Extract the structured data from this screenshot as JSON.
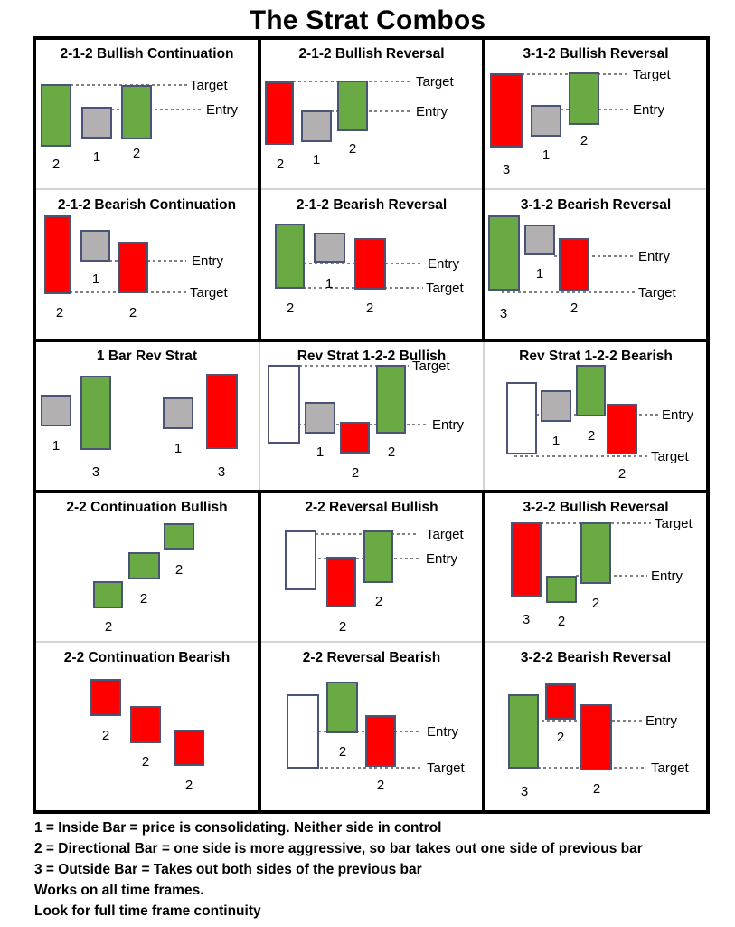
{
  "title": "The Strat Combos",
  "colors": {
    "bullish": "#6aaa45",
    "bearish": "#ff0000",
    "inside": "#b2b0b1",
    "outline_bar": "#ffffff",
    "bar_border": "#4a5478",
    "frame": "#000000"
  },
  "labels": {
    "target": "Target",
    "entry": "Entry"
  },
  "panels": [
    {
      "title": "2-1-2 Bullish Continuation",
      "bars": [
        {
          "kind": "bullish",
          "label": "2"
        },
        {
          "kind": "inside",
          "label": "1"
        },
        {
          "kind": "bullish",
          "label": "2"
        }
      ],
      "lines": [
        "target",
        "entry"
      ]
    },
    {
      "title": "2-1-2 Bullish Reversal",
      "bars": [
        {
          "kind": "bearish",
          "label": "2"
        },
        {
          "kind": "inside",
          "label": "1"
        },
        {
          "kind": "bullish",
          "label": "2"
        }
      ],
      "lines": [
        "target",
        "entry"
      ]
    },
    {
      "title": "3-1-2 Bullish Reversal",
      "bars": [
        {
          "kind": "bearish",
          "label": "3"
        },
        {
          "kind": "inside",
          "label": "1"
        },
        {
          "kind": "bullish",
          "label": "2"
        }
      ],
      "lines": [
        "target",
        "entry"
      ]
    },
    {
      "title": "2-1-2 Bearish Continuation",
      "bars": [
        {
          "kind": "bearish",
          "label": "2"
        },
        {
          "kind": "inside",
          "label": "1"
        },
        {
          "kind": "bearish",
          "label": "2"
        }
      ],
      "lines": [
        "entry",
        "target"
      ]
    },
    {
      "title": "2-1-2 Bearish Reversal",
      "bars": [
        {
          "kind": "bullish",
          "label": "2"
        },
        {
          "kind": "inside",
          "label": "1"
        },
        {
          "kind": "bearish",
          "label": "2"
        }
      ],
      "lines": [
        "entry",
        "target"
      ]
    },
    {
      "title": "3-1-2 Bearish Reversal",
      "bars": [
        {
          "kind": "bullish",
          "label": "3"
        },
        {
          "kind": "inside",
          "label": "1"
        },
        {
          "kind": "bearish",
          "label": "2"
        }
      ],
      "lines": [
        "entry",
        "target"
      ]
    },
    {
      "title": "1 Bar Rev Strat",
      "bars": [
        {
          "kind": "inside",
          "label": "1"
        },
        {
          "kind": "bullish",
          "label": "3"
        },
        {
          "kind": "inside",
          "label": "1"
        },
        {
          "kind": "bearish",
          "label": "3"
        }
      ],
      "lines": []
    },
    {
      "title": "Rev Strat 1-2-2 Bullish",
      "bars": [
        {
          "kind": "outline",
          "label": ""
        },
        {
          "kind": "inside",
          "label": "1"
        },
        {
          "kind": "bearish",
          "label": "2"
        },
        {
          "kind": "bullish",
          "label": "2"
        }
      ],
      "lines": [
        "target",
        "entry"
      ]
    },
    {
      "title": "Rev Strat 1-2-2 Bearish",
      "bars": [
        {
          "kind": "outline",
          "label": ""
        },
        {
          "kind": "inside",
          "label": "1"
        },
        {
          "kind": "bullish",
          "label": "2"
        },
        {
          "kind": "bearish",
          "label": "2"
        }
      ],
      "lines": [
        "entry",
        "target"
      ]
    },
    {
      "title": "2-2 Continuation Bullish",
      "bars": [
        {
          "kind": "bullish",
          "label": "2"
        },
        {
          "kind": "bullish",
          "label": "2"
        },
        {
          "kind": "bullish",
          "label": "2"
        }
      ],
      "lines": []
    },
    {
      "title": "2-2 Reversal Bullish",
      "bars": [
        {
          "kind": "outline",
          "label": ""
        },
        {
          "kind": "bearish",
          "label": "2"
        },
        {
          "kind": "bullish",
          "label": "2"
        }
      ],
      "lines": [
        "target",
        "entry"
      ]
    },
    {
      "title": "3-2-2 Bullish Reversal",
      "bars": [
        {
          "kind": "bearish",
          "label": "3"
        },
        {
          "kind": "bullish",
          "label": "2"
        },
        {
          "kind": "bullish",
          "label": "2"
        }
      ],
      "lines": [
        "target",
        "entry"
      ]
    },
    {
      "title": "2-2 Continuation Bearish",
      "bars": [
        {
          "kind": "bearish",
          "label": "2"
        },
        {
          "kind": "bearish",
          "label": "2"
        },
        {
          "kind": "bearish",
          "label": "2"
        }
      ],
      "lines": []
    },
    {
      "title": "2-2 Reversal Bearish",
      "bars": [
        {
          "kind": "outline",
          "label": ""
        },
        {
          "kind": "bullish",
          "label": "2"
        },
        {
          "kind": "bearish",
          "label": "2"
        }
      ],
      "lines": [
        "entry",
        "target"
      ]
    },
    {
      "title": "3-2-2 Bearish Reversal",
      "bars": [
        {
          "kind": "bullish",
          "label": "3"
        },
        {
          "kind": "bearish",
          "label": "2"
        },
        {
          "kind": "bearish",
          "label": "2"
        }
      ],
      "lines": [
        "entry",
        "target"
      ]
    }
  ],
  "notes": [
    "1 = Inside Bar = price is consolidating. Neither side in control",
    "2 = Directional Bar = one side is more aggressive, so bar takes out one side of previous bar",
    "3 = Outside Bar = Takes out both sides of the previous bar",
    "Works on all time frames.",
    "Look for full time frame continuity"
  ]
}
